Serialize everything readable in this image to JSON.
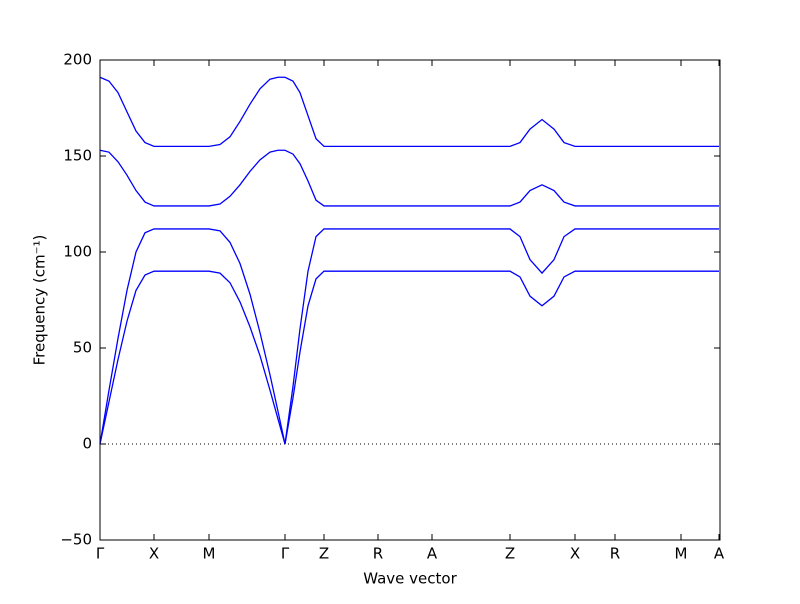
{
  "chart_data": {
    "type": "line",
    "x_label": "Wave vector",
    "y_label": "Frequency (cm⁻¹)",
    "x": [
      0,
      0.09,
      0.18,
      0.27,
      0.36,
      0.45,
      0.54,
      1.09,
      1.2,
      1.3,
      1.4,
      1.5,
      1.6,
      1.7,
      1.78,
      1.85,
      1.93,
      2.0,
      2.08,
      2.16,
      2.24,
      2.78,
      3.32,
      4.1,
      4.2,
      4.3,
      4.42,
      4.54,
      4.64,
      4.75,
      5.15,
      5.81,
      6.19
    ],
    "series": [
      {
        "color": "#0000ff",
        "values": [
          191,
          189,
          183,
          173,
          163,
          157,
          155,
          155,
          156,
          160,
          168,
          177,
          185,
          190,
          191,
          191,
          189,
          183,
          171,
          159,
          155,
          155,
          155,
          155,
          157,
          164,
          169,
          164,
          157,
          155,
          155,
          155,
          155
        ]
      },
      {
        "color": "#0000ff",
        "values": [
          153,
          152,
          147,
          140,
          132,
          126,
          124,
          124,
          125,
          129,
          135,
          142,
          148,
          152,
          153,
          153,
          151,
          146,
          137,
          127,
          124,
          124,
          124,
          124,
          126,
          132,
          135,
          132,
          126,
          124,
          124,
          124,
          124
        ]
      },
      {
        "color": "#0000ff",
        "values": [
          0,
          28,
          55,
          80,
          100,
          110,
          112,
          112,
          111,
          105,
          94,
          78,
          58,
          36,
          17,
          0,
          30,
          60,
          90,
          108,
          112,
          112,
          112,
          112,
          108,
          96,
          89,
          96,
          108,
          112,
          112,
          112,
          112
        ]
      },
      {
        "color": "#0000ff",
        "values": [
          0,
          22,
          44,
          64,
          80,
          88,
          90,
          90,
          89,
          84,
          74,
          61,
          46,
          28,
          13,
          0,
          24,
          48,
          72,
          86,
          90,
          90,
          90,
          90,
          87,
          77,
          72,
          77,
          87,
          90,
          90,
          90,
          90
        ]
      }
    ],
    "xlim": [
      0,
      6.2
    ],
    "xticks": [
      {
        "value": 0,
        "label": "Γ"
      },
      {
        "value": 0.54,
        "label": "X"
      },
      {
        "value": 1.09,
        "label": "M"
      },
      {
        "value": 1.85,
        "label": "Γ"
      },
      {
        "value": 2.24,
        "label": "Z"
      },
      {
        "value": 2.78,
        "label": "R"
      },
      {
        "value": 3.32,
        "label": "A"
      },
      {
        "value": 4.1,
        "label": "Z"
      },
      {
        "value": 4.75,
        "label": "X"
      },
      {
        "value": 5.15,
        "label": "R"
      },
      {
        "value": 5.81,
        "label": "M"
      },
      {
        "value": 6.19,
        "label": "A"
      }
    ],
    "ylim": [
      -50,
      200
    ],
    "yticks": [
      {
        "value": -50,
        "label": "−50"
      },
      0,
      50,
      100,
      150,
      200
    ],
    "hline": 0
  }
}
